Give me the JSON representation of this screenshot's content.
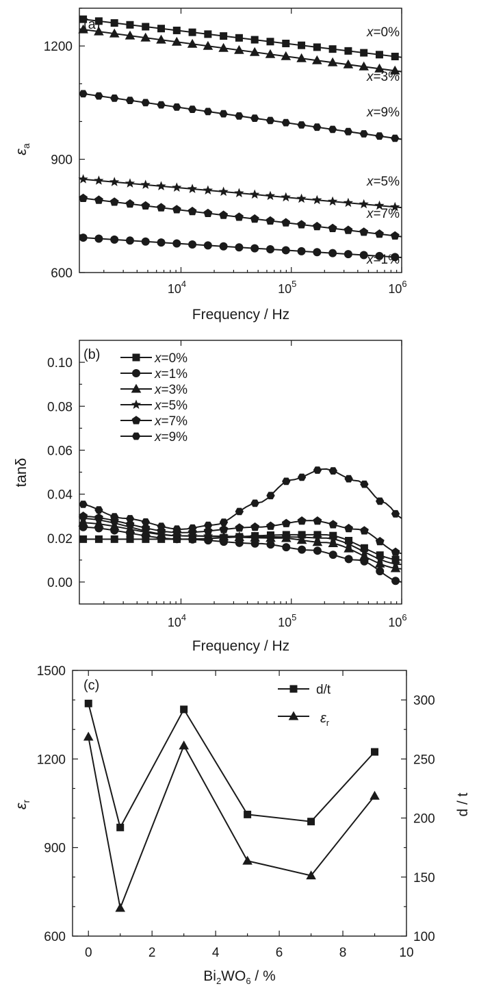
{
  "chart_data": [
    {
      "panel_label": "(a)",
      "type": "scatter",
      "x_scale": "log",
      "xlabel": "Frequency / Hz",
      "ylabel_base": "ε",
      "ylabel_sub": "a",
      "xlim": [
        1200,
        1000000
      ],
      "ylim": [
        600,
        1300
      ],
      "xticks": [
        {
          "value": 10000,
          "base": "10",
          "exp": "4"
        },
        {
          "value": 100000,
          "base": "10",
          "exp": "5"
        },
        {
          "value": 1000000,
          "base": "10",
          "exp": "6"
        }
      ],
      "yticks": [
        600,
        900,
        1200
      ],
      "y_minor_step": 100,
      "series": [
        {
          "name": "x=0%",
          "label_prefix": "x",
          "label_suffix": "=0%",
          "marker": "square",
          "y_start": 1272,
          "y_end": 1170
        },
        {
          "name": "x=3%",
          "label_prefix": "x",
          "label_suffix": "=3%",
          "marker": "triangle",
          "y_start": 1245,
          "y_end": 1132
        },
        {
          "name": "x=9%",
          "label_prefix": "x",
          "label_suffix": "=9%",
          "marker": "hexagon",
          "y_start": 1075,
          "y_end": 953
        },
        {
          "name": "x=5%",
          "label_prefix": "x",
          "label_suffix": "=5%",
          "marker": "star",
          "y_start": 848,
          "y_end": 772
        },
        {
          "name": "x=7%",
          "label_prefix": "x",
          "label_suffix": "=7%",
          "marker": "pentagon",
          "y_start": 798,
          "y_end": 695
        },
        {
          "name": "x=1%",
          "label_prefix": "x",
          "label_suffix": "=1%",
          "marker": "circle",
          "y_start": 693,
          "y_end": 640
        }
      ]
    },
    {
      "panel_label": "(b)",
      "type": "scatter",
      "x_scale": "log",
      "xlabel": "Frequency / Hz",
      "ylabel_base": "tanδ",
      "xlim": [
        1200,
        1000000
      ],
      "ylim": [
        -0.01,
        0.11
      ],
      "xticks": [
        {
          "value": 10000,
          "base": "10",
          "exp": "4"
        },
        {
          "value": 100000,
          "base": "10",
          "exp": "5"
        },
        {
          "value": 1000000,
          "base": "10",
          "exp": "6"
        }
      ],
      "yticks": [
        "0.00",
        "0.02",
        "0.04",
        "0.06",
        "0.08",
        "0.10"
      ],
      "legend_position": "top-left",
      "series": [
        {
          "name": "x=0%",
          "label_prefix": "x",
          "label_suffix": "=0%",
          "marker": "square",
          "points": [
            [
              1200,
              0.0195
            ],
            [
              10000,
              0.0195
            ],
            [
              100000,
              0.0215
            ],
            [
              200000,
              0.0215
            ],
            [
              1000000,
              0.01
            ]
          ]
        },
        {
          "name": "x=1%",
          "label_prefix": "x",
          "label_suffix": "=1%",
          "marker": "circle",
          "points": [
            [
              1200,
              0.025
            ],
            [
              10000,
              0.0195
            ],
            [
              50000,
              0.0175
            ],
            [
              150000,
              0.0145
            ],
            [
              400000,
              0.01
            ],
            [
              1000000,
              0.0
            ]
          ]
        },
        {
          "name": "x=3%",
          "label_prefix": "x",
          "label_suffix": "=3%",
          "marker": "triangle",
          "points": [
            [
              1200,
              0.027
            ],
            [
              10000,
              0.021
            ],
            [
              80000,
              0.02
            ],
            [
              200000,
              0.018
            ],
            [
              1000000,
              0.006
            ]
          ]
        },
        {
          "name": "x=5%",
          "label_prefix": "x",
          "label_suffix": "=5%",
          "marker": "star",
          "points": [
            [
              1200,
              0.029
            ],
            [
              10000,
              0.021
            ],
            [
              100000,
              0.0205
            ],
            [
              200000,
              0.02
            ],
            [
              1000000,
              0.008
            ]
          ]
        },
        {
          "name": "x=7%",
          "label_prefix": "x",
          "label_suffix": "=7%",
          "marker": "pentagon",
          "points": [
            [
              1200,
              0.03
            ],
            [
              10000,
              0.0225
            ],
            [
              50000,
              0.025
            ],
            [
              150000,
              0.028
            ],
            [
              400000,
              0.024
            ],
            [
              1000000,
              0.013
            ]
          ]
        },
        {
          "name": "x=9%",
          "label_prefix": "x",
          "label_suffix": "=9%",
          "marker": "hexagon",
          "points": [
            [
              1200,
              0.0355
            ],
            [
              3000,
              0.029
            ],
            [
              10000,
              0.024
            ],
            [
              20000,
              0.026
            ],
            [
              50000,
              0.036
            ],
            [
              100000,
              0.0465
            ],
            [
              200000,
              0.0515
            ],
            [
              400000,
              0.046
            ],
            [
              700000,
              0.036
            ],
            [
              1000000,
              0.029
            ]
          ]
        }
      ]
    },
    {
      "panel_label": "(c)",
      "type": "line",
      "xlabel_base": "Bi",
      "xlabel_sub1": "2",
      "xlabel_mid": "WO",
      "xlabel_sub2": "6",
      "xlabel_tail": " / %",
      "ylabel_left_base": "ε",
      "ylabel_left_sub": "r",
      "ylabel_right": "d / t",
      "xlim": [
        -0.5,
        10
      ],
      "ylim_left": [
        600,
        1500
      ],
      "ylim_right": [
        100,
        325
      ],
      "xticks": [
        0,
        2,
        4,
        6,
        8,
        10
      ],
      "yticks_left": [
        600,
        900,
        1200,
        1500
      ],
      "yticks_right": [
        100,
        150,
        200,
        250,
        300
      ],
      "legend_position": "top-right",
      "x": [
        0,
        1,
        3,
        5,
        7,
        9
      ],
      "series": [
        {
          "name": "d/t",
          "marker": "square",
          "axis": "right",
          "values": [
            297,
            192,
            292,
            203,
            197,
            256
          ]
        },
        {
          "name": "ε_r",
          "label_base": "ε",
          "label_sub": "r",
          "marker": "triangle",
          "axis": "left",
          "values": [
            1275,
            695,
            1245,
            855,
            805,
            1075
          ]
        }
      ]
    }
  ]
}
